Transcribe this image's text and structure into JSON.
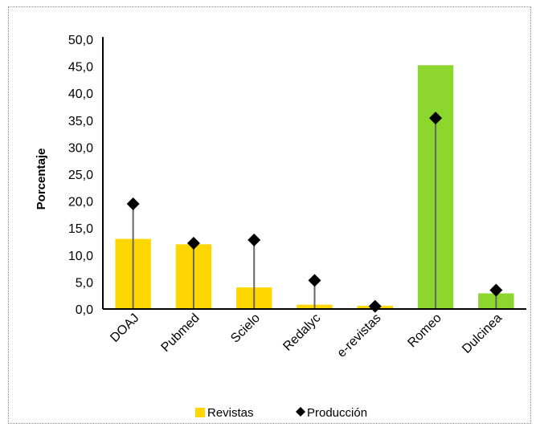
{
  "chart_data": {
    "type": "bar",
    "categories": [
      "DOAJ",
      "Pubmed",
      "Scielo",
      "Redalyc",
      "e-revistas",
      "Romeo",
      "Dulcinea"
    ],
    "ylabel": "Porcentaje",
    "xlabel": "",
    "title": "",
    "ylim": [
      0,
      50
    ],
    "yticks": [
      "0,0",
      "5,0",
      "10,0",
      "15,0",
      "20,0",
      "25,0",
      "30,0",
      "35,0",
      "40,0",
      "45,0",
      "50,0"
    ],
    "series": [
      {
        "name": "Revistas",
        "kind": "bar",
        "values": [
          13.0,
          12.0,
          4.0,
          0.8,
          0.6,
          45.2,
          2.9
        ],
        "colors": [
          "#FFD700",
          "#FFD700",
          "#FFD700",
          "#FFD700",
          "#FFD700",
          "#8DD62E",
          "#8DD62E"
        ]
      },
      {
        "name": "Producción",
        "kind": "marker",
        "values": [
          19.5,
          12.2,
          12.8,
          5.3,
          0.5,
          35.4,
          3.5
        ],
        "color": "#000000"
      }
    ],
    "legend": {
      "position": "bottom",
      "items": [
        {
          "label": "Revistas",
          "color": "#FFD700",
          "shape": "square"
        },
        {
          "label": "Producción",
          "color": "#000000",
          "shape": "diamond"
        }
      ]
    },
    "grid": false
  }
}
